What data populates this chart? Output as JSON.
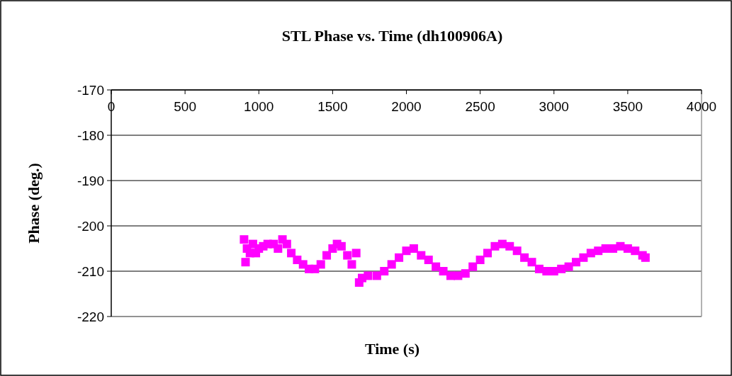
{
  "chart_data": {
    "type": "scatter",
    "title": "STL Phase  vs. Time (dh100906A)",
    "xlabel": "Time (s)",
    "ylabel": "Phase (deg.)",
    "xlim": [
      0,
      4000
    ],
    "xticks": [
      0,
      500,
      1000,
      1500,
      2000,
      2500,
      3000,
      3500,
      4000
    ],
    "ylim": [
      -220,
      -170
    ],
    "yticks": [
      -220,
      -210,
      -200,
      -190,
      -180,
      -170
    ],
    "grid": "y",
    "marker": "square",
    "series": [
      {
        "color": "#ff00ff",
        "x": [
          900,
          910,
          920,
          940,
          960,
          980,
          1000,
          1030,
          1060,
          1100,
          1130,
          1160,
          1190,
          1220,
          1260,
          1300,
          1340,
          1380,
          1420,
          1460,
          1500,
          1530,
          1560,
          1600,
          1630,
          1660,
          1680,
          1700,
          1740,
          1800,
          1850,
          1900,
          1950,
          2000,
          2050,
          2100,
          2150,
          2200,
          2250,
          2300,
          2350,
          2400,
          2450,
          2500,
          2550,
          2600,
          2650,
          2700,
          2750,
          2800,
          2850,
          2900,
          2950,
          3000,
          3050,
          3100,
          3150,
          3200,
          3250,
          3300,
          3350,
          3400,
          3450,
          3500,
          3550,
          3600,
          3620
        ],
        "values": [
          -203,
          -208,
          -205,
          -206,
          -204,
          -206,
          -205,
          -204.5,
          -204,
          -204,
          -205,
          -203,
          -204,
          -206,
          -207.5,
          -208.5,
          -209.5,
          -209.5,
          -208.5,
          -206.5,
          -205,
          -204,
          -204.5,
          -206.5,
          -208.5,
          -206,
          -212.5,
          -211.5,
          -211,
          -211,
          -210,
          -208.5,
          -207,
          -205.5,
          -205,
          -206.5,
          -207.5,
          -209,
          -210,
          -211,
          -211,
          -210.5,
          -209,
          -207.5,
          -206,
          -204.5,
          -204,
          -204.5,
          -205.5,
          -207,
          -208,
          -209.5,
          -210,
          -210,
          -209.5,
          -209,
          -208,
          -207,
          -206,
          -205.5,
          -205,
          -205,
          -204.5,
          -205,
          -205.5,
          -206.5,
          -207
        ]
      }
    ]
  }
}
